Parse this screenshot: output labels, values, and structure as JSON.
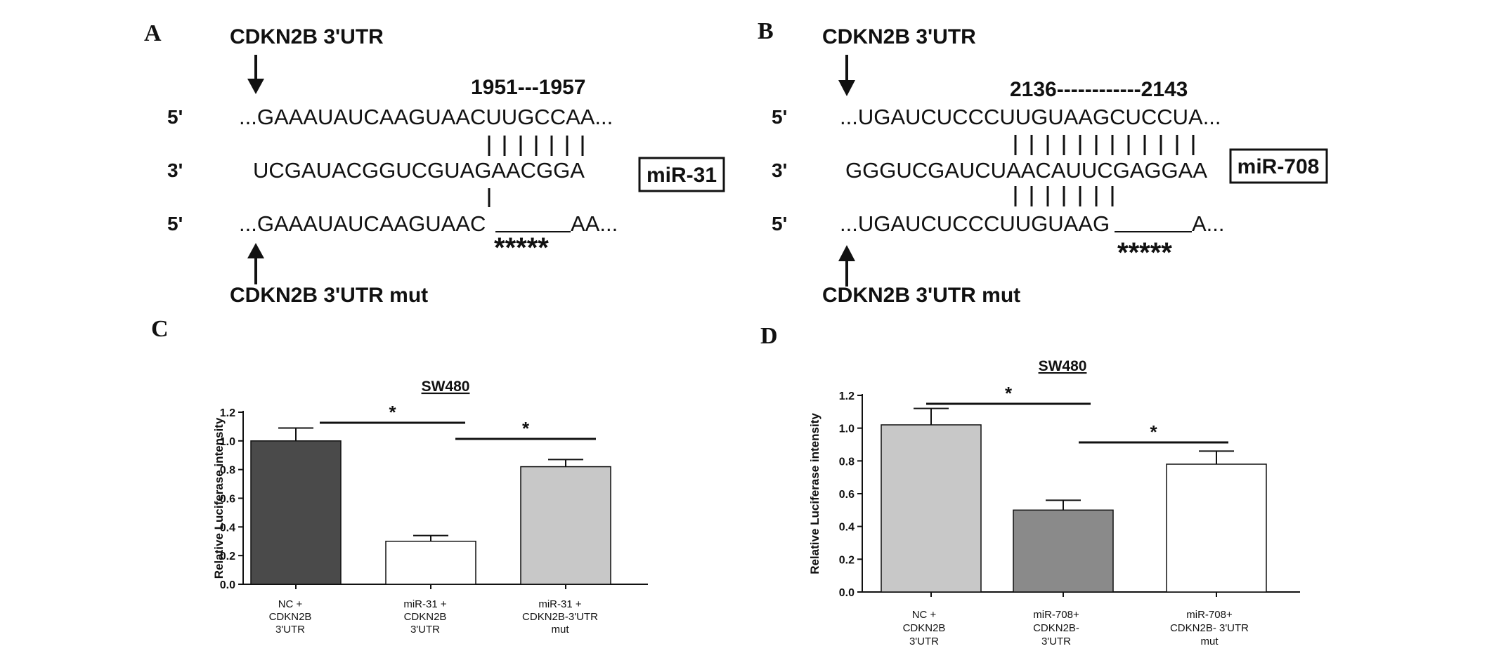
{
  "panels": {
    "A": {
      "letter": "A",
      "top_label": "CDKN2B 3'UTR",
      "position": "1951---1957",
      "row1": {
        "prime": "5'",
        "seq": "...GAAAUAUCAAGUAACUUGCCAA..."
      },
      "row2": {
        "prime": "3'",
        "seq": "UCGAUACGGUCGUAGAACGGA"
      },
      "row3": {
        "prime": "5'",
        "seq_left": "...GAAAUAUCAAGUAAC",
        "seq_right": "AA..."
      },
      "mirna": "miR-31",
      "stars": "*****",
      "bottom_label": "CDKN2B 3'UTR mut"
    },
    "B": {
      "letter": "B",
      "top_label": "CDKN2B 3'UTR",
      "position": "2136------------2143",
      "row1": {
        "prime": "5'",
        "seq": "...UGAUCUCCCUUGUAAGCUCCUA..."
      },
      "row2": {
        "prime": "3'",
        "seq": "GGGUCGAUCUAACAUUCGAGGAA"
      },
      "row3": {
        "prime": "5'",
        "seq_left": "...UGAUCUCCCUUGUAAG",
        "seq_right": "A..."
      },
      "mirna": "miR-708",
      "stars": "*****",
      "bottom_label": "CDKN2B 3'UTR mut"
    },
    "C": {
      "letter": "C"
    },
    "D": {
      "letter": "D"
    }
  },
  "chart_data": [
    {
      "type": "bar",
      "title": "SW480",
      "ylabel": "Relative Luciferase   intensity",
      "ylim": [
        0,
        1.2
      ],
      "yticks": [
        "0.0",
        "0.2",
        "0.4",
        "0.6",
        "0.8",
        "1.0",
        "1.2"
      ],
      "categories": [
        [
          "NC +",
          "CDKN2B",
          "3'UTR"
        ],
        [
          "miR-31 +",
          "CDKN2B",
          "3'UTR"
        ],
        [
          "miR-31 +",
          "CDKN2B-3'UTR",
          "mut"
        ]
      ],
      "values": [
        1.0,
        0.3,
        0.82
      ],
      "errors": [
        0.09,
        0.04,
        0.05
      ],
      "bar_colors": [
        "#4a4a4a",
        "#ffffff",
        "#c8c8c8"
      ],
      "significance": [
        {
          "from": 0,
          "to": 1,
          "label": "*"
        },
        {
          "from": 1,
          "to": 2,
          "label": "*"
        }
      ]
    },
    {
      "type": "bar",
      "title": "SW480",
      "ylabel": "Relative Luciferase  intensity",
      "ylim": [
        0,
        1.2
      ],
      "yticks": [
        "0.0",
        "0.2",
        "0.4",
        "0.6",
        "0.8",
        "1.0",
        "1.2"
      ],
      "categories": [
        [
          "NC +",
          "CDKN2B",
          "3'UTR"
        ],
        [
          "miR-708+",
          "CDKN2B-",
          "3'UTR"
        ],
        [
          "miR-708+",
          "CDKN2B- 3'UTR",
          "mut"
        ]
      ],
      "values": [
        1.02,
        0.5,
        0.78
      ],
      "errors": [
        0.1,
        0.06,
        0.08
      ],
      "bar_colors": [
        "#c8c8c8",
        "#8a8a8a",
        "#ffffff"
      ],
      "significance": [
        {
          "from": 0,
          "to": 1,
          "label": "*"
        },
        {
          "from": 1,
          "to": 2,
          "label": "*"
        }
      ]
    }
  ]
}
